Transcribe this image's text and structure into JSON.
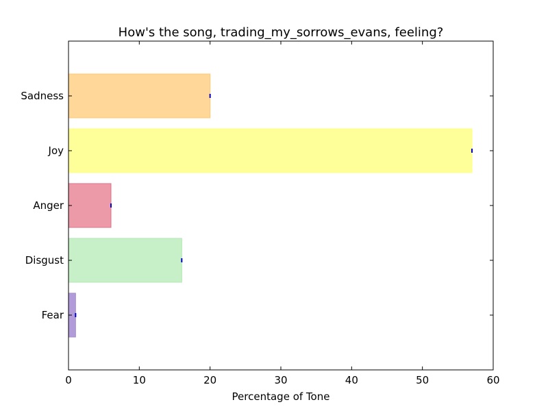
{
  "chart_data": {
    "type": "bar",
    "orientation": "horizontal",
    "title": "How's the song, trading_my_sorrows_evans, feeling?",
    "xlabel": "Percentage of Tone",
    "ylabel": "",
    "xlim": [
      0,
      60
    ],
    "xticks": [
      "0",
      "10",
      "20",
      "30",
      "40",
      "50",
      "60"
    ],
    "categories": [
      "Fear",
      "Disgust",
      "Anger",
      "Joy",
      "Sadness"
    ],
    "values": [
      1,
      16,
      6,
      57,
      20
    ],
    "colors": [
      "#b19cd9",
      "#c8f0c8",
      "#ec9aa8",
      "#ffff99",
      "#ffd899"
    ],
    "edge_colors": [
      "#a38ccf",
      "#b0e8b0",
      "#e07088",
      "#ffff80",
      "#ffc870"
    ],
    "grid": false,
    "legend": "none"
  }
}
